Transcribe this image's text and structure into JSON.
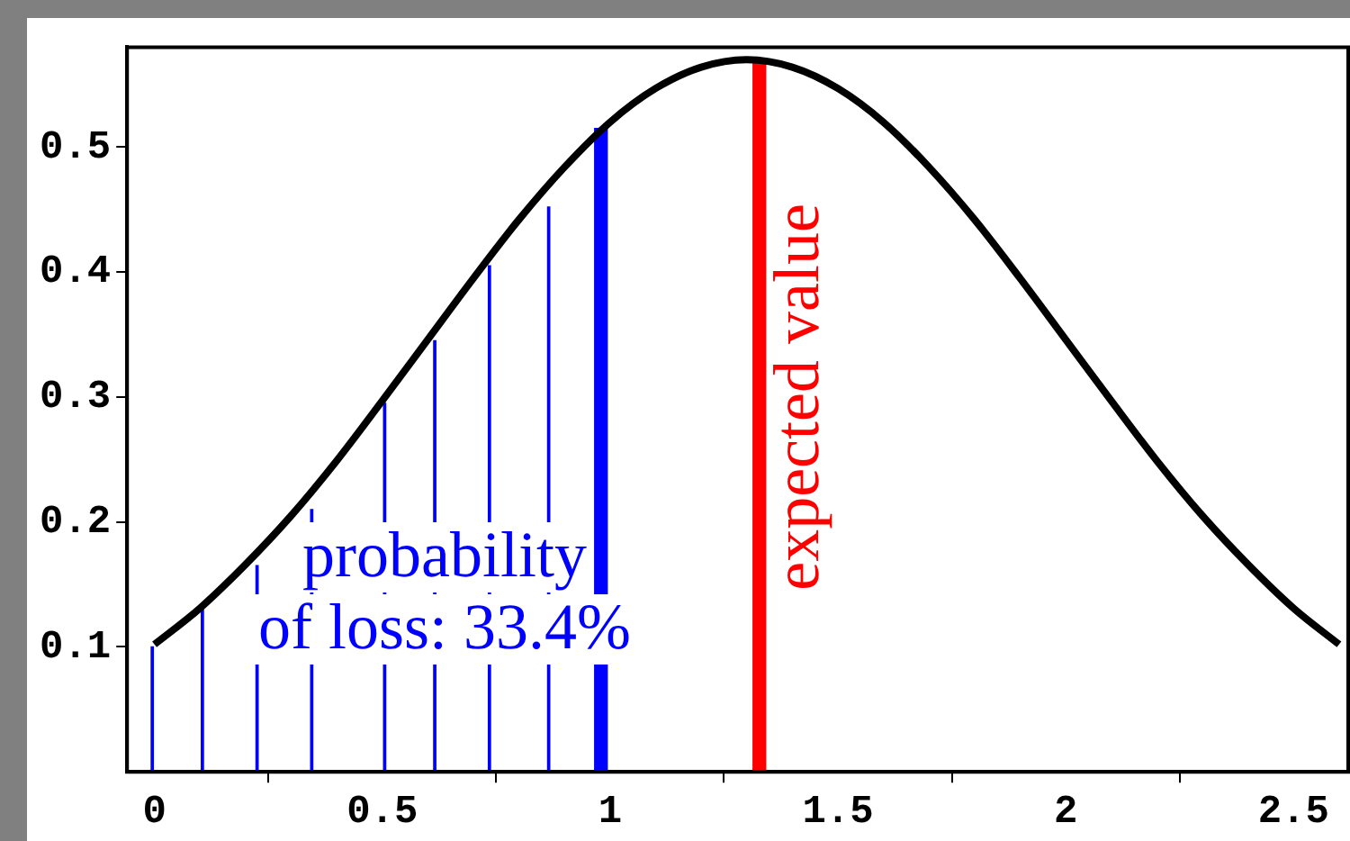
{
  "chart_data": {
    "type": "line",
    "xlim": [
      -0.06,
      2.62
    ],
    "ylim": [
      0,
      0.58
    ],
    "xticks": [
      0,
      0.5,
      1,
      1.5,
      2,
      2.5
    ],
    "yticks": [
      0.1,
      0.2,
      0.3,
      0.4,
      0.5
    ],
    "grid": false,
    "legend": false,
    "marker": "none",
    "series": [
      {
        "color": "#000000",
        "x": [
          0,
          0.1,
          0.2,
          0.3,
          0.4,
          0.5,
          0.6,
          0.7,
          0.8,
          0.9,
          1,
          1.1,
          1.2,
          1.3,
          1.4,
          1.5,
          1.6,
          1.7,
          1.8,
          1.9,
          2,
          2.1,
          2.2,
          2.3,
          2.4,
          2.5,
          2.6
        ],
        "values": [
          0.102,
          0.131,
          0.166,
          0.205,
          0.249,
          0.297,
          0.346,
          0.395,
          0.442,
          0.484,
          0.52,
          0.547,
          0.564,
          0.57,
          0.564,
          0.547,
          0.52,
          0.484,
          0.442,
          0.395,
          0.346,
          0.297,
          0.249,
          0.205,
          0.166,
          0.131,
          0.102
        ]
      },
      {
        "type": "bar",
        "color": "#0000ff",
        "x": [
          0,
          0.11,
          0.23,
          0.35,
          0.51,
          0.62,
          0.74,
          0.87
        ],
        "values": [
          0.1,
          0.13,
          0.165,
          0.21,
          0.295,
          0.345,
          0.405,
          0.452
        ]
      },
      {
        "type": "bar",
        "color": "#0000ff",
        "x": [
          0.98
        ],
        "values": [
          0.515
        ]
      },
      {
        "type": "bar",
        "color": "#ff0000",
        "x": [
          1.3
        ],
        "values": [
          0.57
        ]
      }
    ],
    "annotations": [
      "probability\nof loss: 33.4%",
      {
        "text": "expected value",
        "x": 1.3,
        "y": 0.3
      }
    ]
  }
}
